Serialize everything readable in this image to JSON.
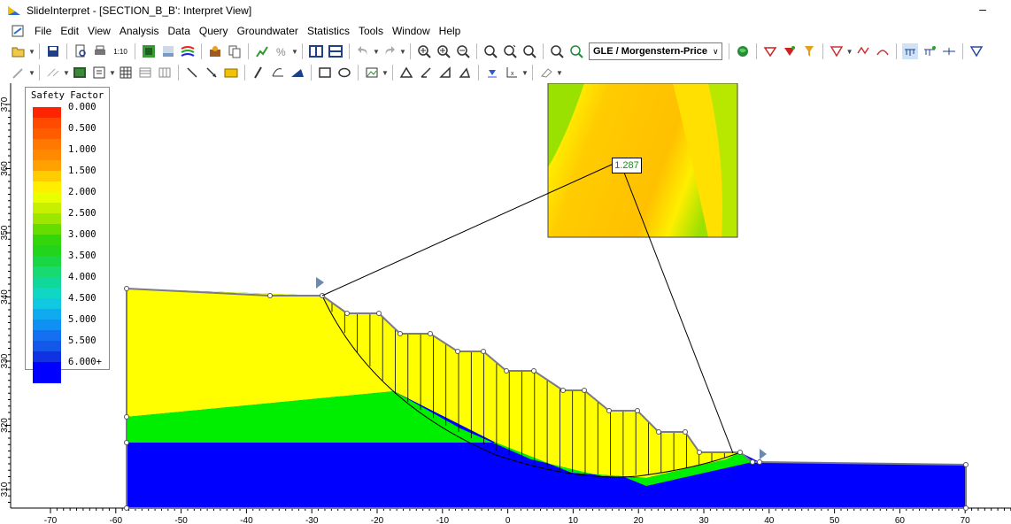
{
  "window": {
    "title": "SlideInterpret - [SECTION_B_B': Interpret View]",
    "minimize": "–"
  },
  "menu": [
    "File",
    "Edit",
    "View",
    "Analysis",
    "Data",
    "Query",
    "Groundwater",
    "Statistics",
    "Tools",
    "Window",
    "Help"
  ],
  "toolbar": {
    "scale_label": "1:10",
    "method_select": "GLE / Morgenstern-Price"
  },
  "legend": {
    "title": "Safety Factor",
    "entries": [
      {
        "label": "0.000",
        "top": "#ff2400",
        "bottom": "#ff4a00"
      },
      {
        "label": "0.500",
        "top": "#ff5c00",
        "bottom": "#ff7800"
      },
      {
        "label": "1.000",
        "top": "#ff8a00",
        "bottom": "#ffa200"
      },
      {
        "label": "1.500",
        "top": "#ffcc00",
        "bottom": "#ffee00"
      },
      {
        "label": "2.000",
        "top": "#e8ff00",
        "bottom": "#c6f000"
      },
      {
        "label": "2.500",
        "top": "#9ce600",
        "bottom": "#66dd00"
      },
      {
        "label": "3.000",
        "top": "#33d60a",
        "bottom": "#22d41c"
      },
      {
        "label": "3.500",
        "top": "#18d644",
        "bottom": "#18da70"
      },
      {
        "label": "4.000",
        "top": "#10d89a",
        "bottom": "#10d6c4"
      },
      {
        "label": "4.500",
        "top": "#10c8e2",
        "bottom": "#10aaf0"
      },
      {
        "label": "5.000",
        "top": "#1090f2",
        "bottom": "#1470f0"
      },
      {
        "label": "5.500",
        "top": "#1458ea",
        "bottom": "#1032e2"
      },
      {
        "label": "6.000+",
        "top": "#0000ff",
        "bottom": "#0000ff"
      }
    ]
  },
  "plot": {
    "x_ticks": [
      "-70",
      "-60",
      "-50",
      "-40",
      "-30",
      "-20",
      "-10",
      "0",
      "10",
      "20",
      "30",
      "40",
      "50",
      "60",
      "70"
    ],
    "y_ticks": [
      "370",
      "360",
      "350",
      "340",
      "330",
      "320",
      "310"
    ],
    "min_factor_of_safety": "1.287"
  },
  "colors": {
    "upper_material": "#ffff00",
    "middle_material": "#00ee00",
    "bedrock": "#0000ff",
    "inset_base": "#ffcc00"
  }
}
